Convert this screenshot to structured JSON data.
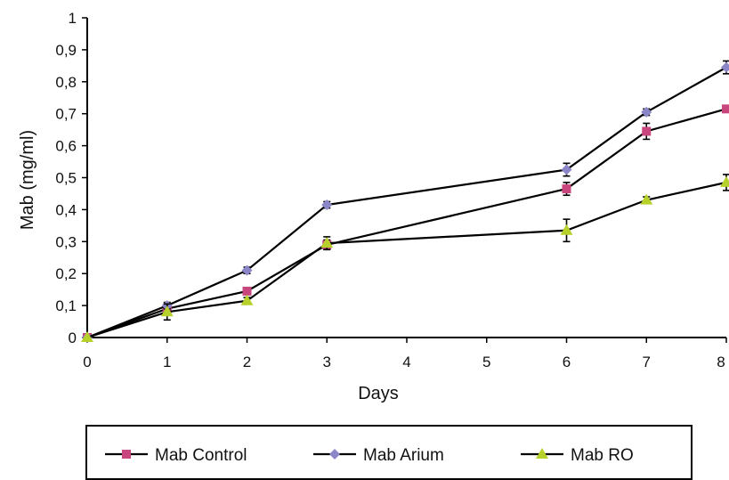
{
  "chart_data": {
    "type": "line",
    "title": "",
    "xlabel": "Days",
    "ylabel": "Mab (mg/ml)",
    "x": [
      0,
      1,
      2,
      3,
      6,
      7,
      8
    ],
    "x_ticks": [
      0,
      1,
      2,
      3,
      4,
      5,
      6,
      7,
      8
    ],
    "x_tick_labels": [
      "0",
      "1",
      "2",
      "3",
      "4",
      "5",
      "6",
      "7",
      "8"
    ],
    "ylim": [
      0,
      1
    ],
    "y_ticks": [
      0,
      0.1,
      0.2,
      0.3,
      0.4,
      0.5,
      0.6,
      0.7,
      0.8,
      0.9,
      1
    ],
    "y_tick_labels": [
      "0",
      "0,1",
      "0,2",
      "0,3",
      "0,4",
      "0,5",
      "0,6",
      "0,7",
      "0,8",
      "0,9",
      "1"
    ],
    "grid": false,
    "legend_position": "bottom",
    "series": [
      {
        "name": "Mab Control",
        "marker": "square",
        "color": "#c8457e",
        "values": [
          0,
          0.09,
          0.145,
          0.29,
          0.465,
          0.645,
          0.715
        ],
        "errors": [
          0,
          0.01,
          0.01,
          0.015,
          0.02,
          0.025,
          0.01
        ]
      },
      {
        "name": "Mab Arium",
        "marker": "diamond",
        "color": "#8a86c8",
        "values": [
          0,
          0.1,
          0.21,
          0.415,
          0.525,
          0.705,
          0.845
        ],
        "errors": [
          0,
          0.01,
          0.01,
          0.01,
          0.02,
          0.01,
          0.02
        ]
      },
      {
        "name": "Mab RO",
        "marker": "triangle",
        "color": "#b8d02a",
        "values": [
          0,
          0.08,
          0.115,
          0.295,
          0.335,
          0.43,
          0.485
        ],
        "errors": [
          0,
          0.025,
          0.01,
          0.02,
          0.035,
          0.01,
          0.025
        ]
      }
    ]
  }
}
